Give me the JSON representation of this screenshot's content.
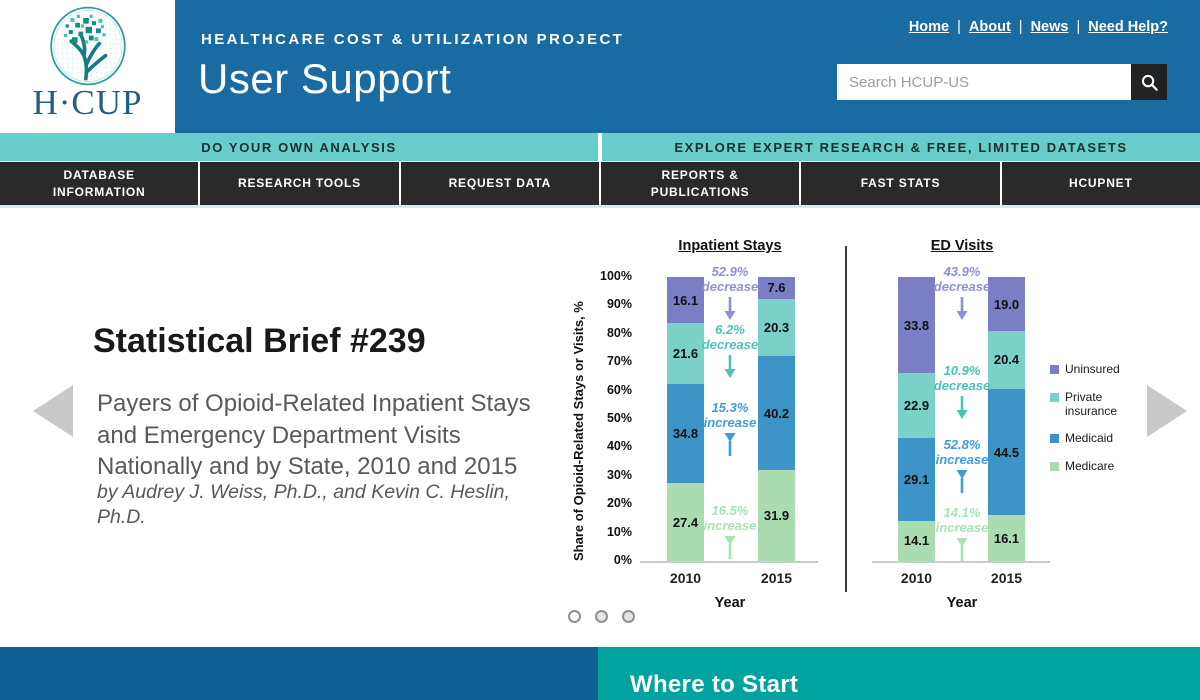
{
  "header": {
    "logo_text": "H·CUP",
    "eyebrow": "HEALTHCARE COST & UTILIZATION PROJECT",
    "title": "User Support",
    "links": [
      "Home",
      "About",
      "News",
      "Need Help?"
    ],
    "search": {
      "placeholder": "Search HCUP-US"
    }
  },
  "banners": {
    "left": "DO YOUR OWN ANALYSIS",
    "right": "EXPLORE EXPERT RESEARCH & FREE, LIMITED DATASETS"
  },
  "nav": {
    "items": [
      "DATABASE\nINFORMATION",
      "RESEARCH TOOLS",
      "REQUEST DATA",
      "REPORTS &\nPUBLICATIONS",
      "FAST STATS",
      "HCUPNET"
    ]
  },
  "carousel": {
    "title": "Statistical Brief #239",
    "subtitle": "Payers of Opioid-Related Inpatient Stays\nand Emergency Department Visits\nNationally and by State, 2010 and 2015",
    "byline": "by Audrey J. Weiss, Ph.D., and Kevin C. Heslin,\nPh.D.",
    "dots": {
      "count": 3,
      "active_index": 0
    }
  },
  "chart_data": {
    "type": "bar",
    "subtype": "stacked-100-percent",
    "ylabel": "Share of Opioid-Related Stays or Visits, %",
    "xlabel": "Year",
    "ylim": [
      0,
      100
    ],
    "yticks": [
      "100%",
      "90%",
      "80%",
      "70%",
      "60%",
      "50%",
      "40%",
      "30%",
      "20%",
      "10%",
      "0%"
    ],
    "legend": [
      {
        "label": "Uninsured",
        "color": "#7b7ec5"
      },
      {
        "label": "Private insurance",
        "color": "#7bd0c7"
      },
      {
        "label": "Medicaid",
        "color": "#3d94c7"
      },
      {
        "label": "Medicare",
        "color": "#aadcb0"
      }
    ],
    "charts": [
      {
        "title": "Inpatient Stays",
        "categories": [
          "2010",
          "2015"
        ],
        "series": [
          {
            "name": "Medicare",
            "color": "#aadcb0",
            "values": [
              27.4,
              31.9
            ]
          },
          {
            "name": "Medicaid",
            "color": "#3d94c7",
            "values": [
              34.8,
              40.2
            ]
          },
          {
            "name": "Private insurance",
            "color": "#7bd0c7",
            "values": [
              21.6,
              20.3
            ]
          },
          {
            "name": "Uninsured",
            "color": "#7b7ec5",
            "values": [
              16.1,
              7.6
            ]
          }
        ],
        "annotations": [
          {
            "text": "52.9%\ndecrease",
            "direction": "down",
            "color": "#8d90d6"
          },
          {
            "text": "6.2%\ndecrease",
            "direction": "down",
            "color": "#4cc3b7"
          },
          {
            "text": "15.3%\nincrease",
            "direction": "up",
            "color": "#3f9ed9"
          },
          {
            "text": "16.5%\nincrease",
            "direction": "up",
            "color": "#a8e3b6"
          }
        ]
      },
      {
        "title": "ED Visits",
        "categories": [
          "2010",
          "2015"
        ],
        "series": [
          {
            "name": "Medicare",
            "color": "#aadcb0",
            "values": [
              14.1,
              16.1
            ]
          },
          {
            "name": "Medicaid",
            "color": "#3d94c7",
            "values": [
              29.1,
              44.5
            ]
          },
          {
            "name": "Private insurance",
            "color": "#7bd0c7",
            "values": [
              22.9,
              20.4
            ]
          },
          {
            "name": "Uninsured",
            "color": "#7b7ec5",
            "values": [
              33.8,
              19.0
            ]
          }
        ],
        "annotations": [
          {
            "text": "43.9%\ndecrease",
            "direction": "down",
            "color": "#8d90d6"
          },
          {
            "text": "10.9%\ndecrease",
            "direction": "down",
            "color": "#4cc3b7"
          },
          {
            "text": "52.8%\nincrease",
            "direction": "up",
            "color": "#3f9ed9"
          },
          {
            "text": "14.1%\nincrease",
            "direction": "up",
            "color": "#a8e3b6"
          }
        ]
      }
    ]
  },
  "footer": {
    "title": "Where to Start"
  },
  "colors": {
    "header_blue": "#1a6ba1",
    "banner_teal": "#68cdca",
    "nav_black": "#2b2a2a",
    "footer_blue": "#0f5f93",
    "footer_teal": "#00a39e",
    "logo_teal": "#2a9d9e"
  }
}
